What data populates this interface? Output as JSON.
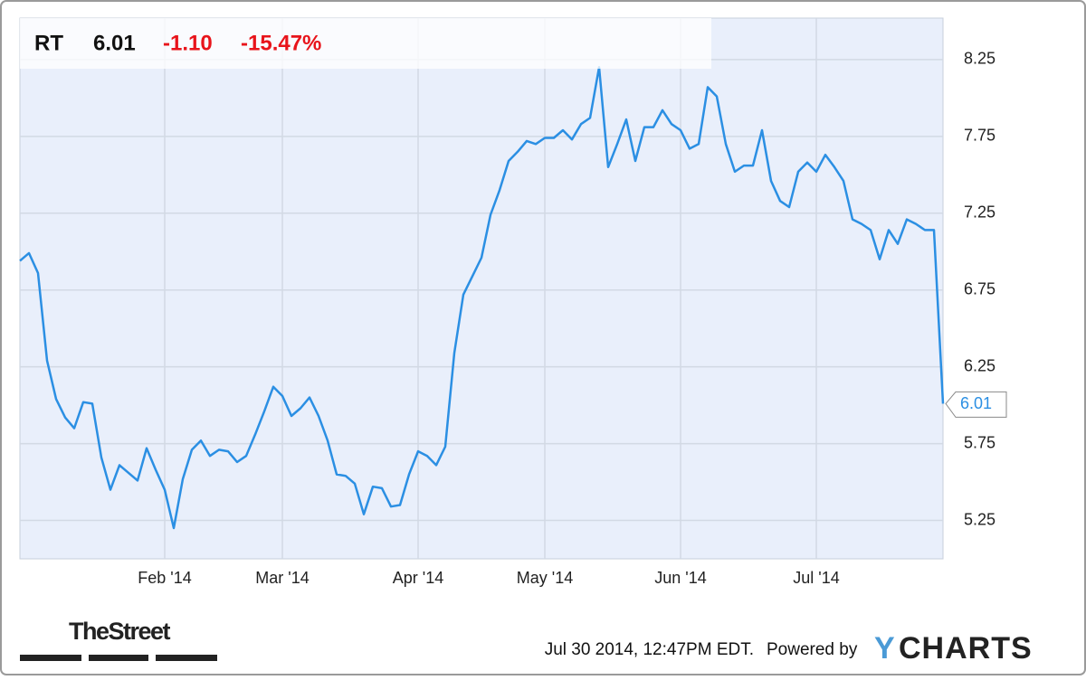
{
  "chart_data": {
    "type": "line",
    "symbol": "RT",
    "change": "-1.10",
    "change_percent": "-15.47%",
    "color": "#2b8fe3",
    "categories": [
      null,
      null,
      null,
      null,
      null,
      null,
      null,
      null,
      null,
      null,
      null,
      null,
      null,
      null,
      null,
      null,
      "Feb '14",
      null,
      null,
      null,
      null,
      null,
      null,
      null,
      null,
      null,
      null,
      null,
      null,
      "Mar '14",
      null,
      null,
      null,
      null,
      null,
      null,
      null,
      null,
      null,
      null,
      null,
      null,
      null,
      null,
      "Apr '14",
      null,
      null,
      null,
      null,
      null,
      null,
      null,
      null,
      null,
      null,
      null,
      null,
      null,
      "May '14",
      null,
      null,
      null,
      null,
      null,
      null,
      null,
      null,
      null,
      null,
      null,
      null,
      null,
      null,
      "Jun '14",
      null,
      null,
      null,
      null,
      null,
      null,
      null,
      null,
      null,
      null,
      null,
      null,
      null,
      null,
      "Jul '14",
      null,
      null,
      null,
      null,
      null,
      null,
      null,
      null,
      null,
      null,
      null,
      null,
      null,
      null
    ],
    "values": [
      6.94,
      6.99,
      6.86,
      6.29,
      6.04,
      5.92,
      5.85,
      6.02,
      6.01,
      5.66,
      5.45,
      5.61,
      5.56,
      5.51,
      5.72,
      5.58,
      5.45,
      5.2,
      5.52,
      5.71,
      5.77,
      5.67,
      5.71,
      5.7,
      5.63,
      5.67,
      5.81,
      5.96,
      6.12,
      6.06,
      5.93,
      5.98,
      6.05,
      5.93,
      5.77,
      5.55,
      5.54,
      5.49,
      5.29,
      5.47,
      5.46,
      5.34,
      5.35,
      5.55,
      5.7,
      5.67,
      5.61,
      5.73,
      6.34,
      6.72,
      6.84,
      6.96,
      7.24,
      7.4,
      7.59,
      7.65,
      7.72,
      7.7,
      7.74,
      7.74,
      7.79,
      7.73,
      7.83,
      7.87,
      8.2,
      7.55,
      7.7,
      7.86,
      7.59,
      7.81,
      7.81,
      7.92,
      7.83,
      7.79,
      7.67,
      7.7,
      8.07,
      8.01,
      7.7,
      7.52,
      7.56,
      7.56,
      7.79,
      7.46,
      7.33,
      7.29,
      7.52,
      7.58,
      7.52,
      7.63,
      7.55,
      7.46,
      7.21,
      7.18,
      7.14,
      6.95,
      7.14,
      7.05,
      7.21,
      7.18,
      7.14,
      7.14,
      6.01
    ],
    "ylim": [
      5.0,
      8.52
    ],
    "yticks": [
      5.25,
      5.75,
      6.25,
      6.75,
      7.25,
      7.75,
      8.25
    ],
    "grid": true
  },
  "footer": {
    "brand": "TheStreet",
    "timestamp": "Jul 30 2014, 12:47PM EDT.",
    "powered_by": "Powered by",
    "logo_mark": "Y",
    "logo_text": "CHARTS"
  }
}
